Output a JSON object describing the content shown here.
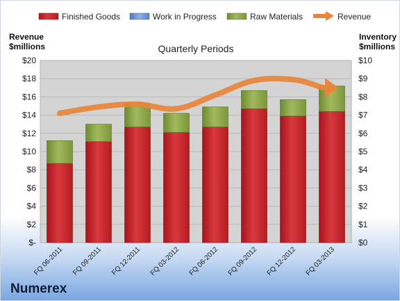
{
  "company": "Numerex",
  "chart_data": {
    "type": "bar",
    "stacked": true,
    "title": "Quarterly Periods",
    "legend": {
      "position": "top",
      "items": [
        {
          "name": "Finished Goods",
          "color": "#c0262c"
        },
        {
          "name": "Work in Progress",
          "color": "#6f95d1"
        },
        {
          "name": "Raw Materials",
          "color": "#8ea64a"
        },
        {
          "name": "Revenue",
          "color": "#e8853a"
        }
      ]
    },
    "left_axis": {
      "title_line1": "Revenue",
      "title_line2": "$millions",
      "ylim": [
        0,
        20
      ],
      "ticks": [
        "$-",
        "$2",
        "$4",
        "$6",
        "$8",
        "$10",
        "$12",
        "$14",
        "$16",
        "$18",
        "$20"
      ]
    },
    "right_axis": {
      "title_line1": "Inventory",
      "title_line2": "$millions",
      "ylim": [
        0,
        10
      ],
      "ticks": [
        "$0",
        "$1",
        "$2",
        "$3",
        "$4",
        "$5",
        "$6",
        "$7",
        "$8",
        "$9",
        "$10"
      ]
    },
    "categories": [
      "FQ 06-2011",
      "FQ 09-2011",
      "FQ 12-2011",
      "FQ 03-2012",
      "FQ 06-2012",
      "FQ 09-2012",
      "FQ 12-2012",
      "FQ 03-2013"
    ],
    "series": [
      {
        "name": "Finished Goods",
        "axis": "right",
        "values": [
          4.35,
          5.55,
          6.35,
          6.05,
          6.35,
          7.35,
          6.95,
          7.2
        ]
      },
      {
        "name": "Work in Progress",
        "axis": "right",
        "values": [
          0,
          0,
          0,
          0,
          0,
          0,
          0,
          0
        ]
      },
      {
        "name": "Raw Materials",
        "axis": "right",
        "values": [
          1.25,
          0.95,
          1.3,
          1.05,
          1.1,
          1.0,
          0.9,
          1.4
        ]
      },
      {
        "name": "Revenue",
        "axis": "left",
        "type": "line",
        "values": [
          14.2,
          14.9,
          15.2,
          14.7,
          16.2,
          17.8,
          17.9,
          17.0
        ]
      }
    ],
    "grid": true
  }
}
